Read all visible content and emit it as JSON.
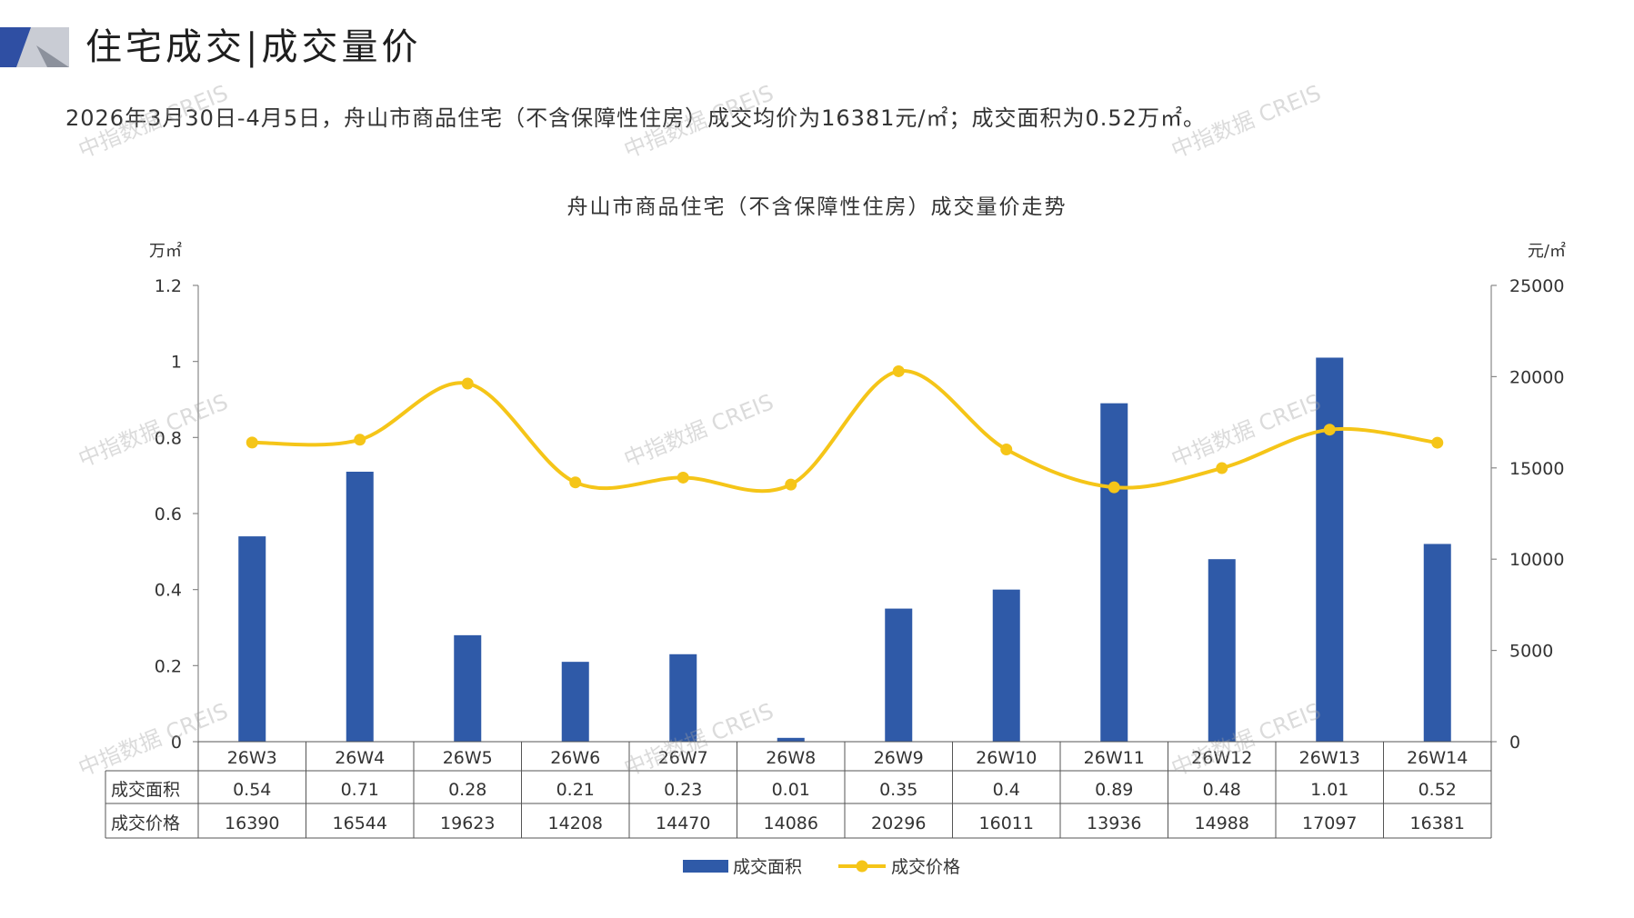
{
  "header": {
    "title": "住宅成交|成交量价"
  },
  "summary": "2026年3月30日-4月5日，舟山市商品住宅（不含保障性住房）成交均价为16381元/㎡；成交面积为0.52万㎡。",
  "watermark": "中指数据 CREIS",
  "colors": {
    "bar": "#2f5aa8",
    "line": "#f5c518",
    "brand_dark": "#2f4fa3",
    "brand_light": "#c9ccd4"
  },
  "chart_data": {
    "type": "bar",
    "title": "舟山市商品住宅（不含保障性住房）成交量价走势",
    "y_left_unit": "万㎡",
    "y_right_unit": "元/㎡",
    "y_left_ticks": [
      "0",
      "0.2",
      "0.4",
      "0.6",
      "0.8",
      "1",
      "1.2"
    ],
    "y_right_ticks": [
      "0",
      "5000",
      "10000",
      "15000",
      "20000",
      "25000"
    ],
    "ylim_left": [
      0,
      1.2
    ],
    "ylim_right": [
      0,
      25000
    ],
    "categories": [
      "26W3",
      "26W4",
      "26W5",
      "26W6",
      "26W7",
      "26W8",
      "26W9",
      "26W10",
      "26W11",
      "26W12",
      "26W13",
      "26W14"
    ],
    "series": [
      {
        "name": "成交面积",
        "type": "bar",
        "axis": "left",
        "values": [
          0.54,
          0.71,
          0.28,
          0.21,
          0.23,
          0.01,
          0.35,
          0.4,
          0.89,
          0.48,
          1.01,
          0.52
        ],
        "labels": [
          "0.54",
          "0.71",
          "0.28",
          "0.21",
          "0.23",
          "0.01",
          "0.35",
          "0.4",
          "0.89",
          "0.48",
          "1.01",
          "0.52"
        ]
      },
      {
        "name": "成交价格",
        "type": "line",
        "axis": "right",
        "values": [
          16390,
          16544,
          19623,
          14208,
          14470,
          14086,
          20296,
          16011,
          13936,
          14988,
          17097,
          16381
        ],
        "labels": [
          "16390",
          "16544",
          "19623",
          "14208",
          "14470",
          "14086",
          "20296",
          "16011",
          "13936",
          "14988",
          "17097",
          "16381"
        ]
      }
    ],
    "legend": "bottom",
    "grid": false
  }
}
